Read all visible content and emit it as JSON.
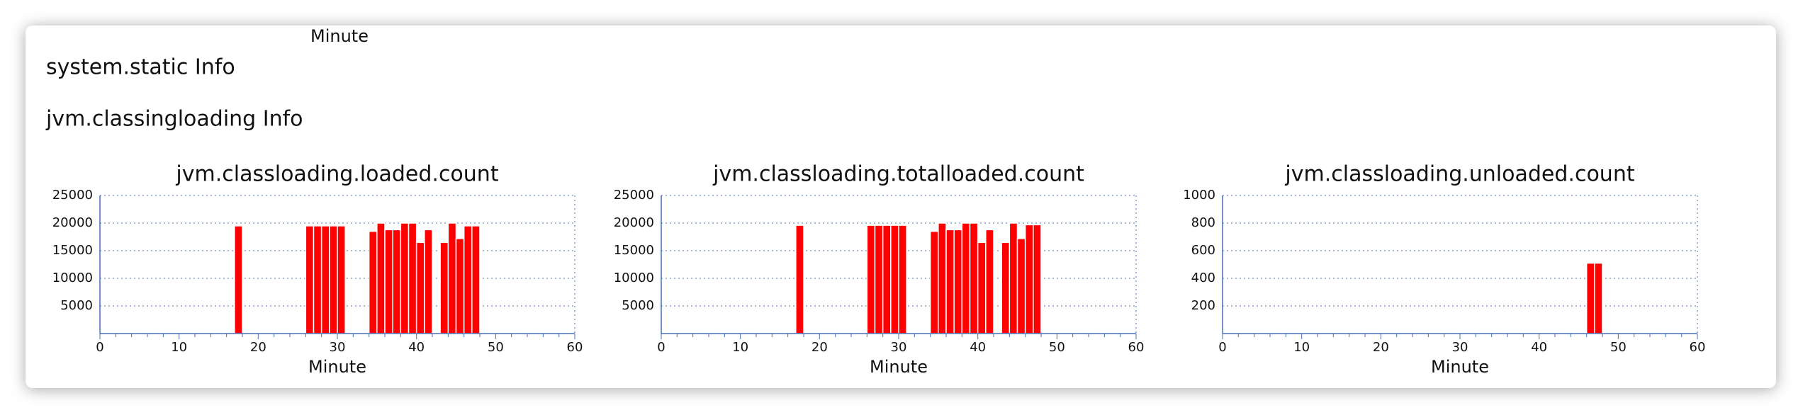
{
  "stray_label": "Minute",
  "sections": [
    "system.static Info",
    "jvm.classingloading Info"
  ],
  "chart_data": [
    {
      "type": "bar",
      "title": "jvm.classloading.loaded.count",
      "x_label": "Minute",
      "color": "#ff0000",
      "x": [
        17,
        26,
        27,
        28,
        29,
        30,
        34,
        35,
        36,
        37,
        38,
        39,
        40,
        41,
        43,
        44,
        45,
        46,
        47
      ],
      "values": [
        19500,
        19500,
        19500,
        19500,
        19500,
        19500,
        18500,
        20000,
        18800,
        18800,
        20000,
        20000,
        16500,
        18800,
        16500,
        20000,
        17200,
        19500,
        19500
      ],
      "xlim": [
        0,
        60
      ],
      "xticks": [
        0,
        10,
        20,
        30,
        40,
        50,
        60
      ],
      "ylim": [
        0,
        25000
      ],
      "yticks": [
        5000,
        10000,
        15000,
        20000,
        25000
      ],
      "grid": true
    },
    {
      "type": "bar",
      "title": "jvm.classloading.totalloaded.count",
      "x_label": "Minute",
      "color": "#ff0000",
      "x": [
        17,
        26,
        27,
        28,
        29,
        30,
        34,
        35,
        36,
        37,
        38,
        39,
        40,
        41,
        43,
        44,
        45,
        46,
        47
      ],
      "values": [
        19600,
        19600,
        19600,
        19600,
        19600,
        19600,
        18500,
        20000,
        18800,
        18800,
        20000,
        20000,
        16500,
        18800,
        16500,
        20000,
        17200,
        19700,
        19700
      ],
      "xlim": [
        0,
        60
      ],
      "xticks": [
        0,
        10,
        20,
        30,
        40,
        50,
        60
      ],
      "ylim": [
        0,
        25000
      ],
      "yticks": [
        5000,
        10000,
        15000,
        20000,
        25000
      ],
      "grid": true
    },
    {
      "type": "bar",
      "title": "jvm.classloading.unloaded.count",
      "x_label": "Minute",
      "color": "#ff0000",
      "x": [
        17,
        26,
        27,
        28,
        29,
        35,
        36,
        37,
        38,
        39,
        41,
        46,
        47
      ],
      "values": [
        3,
        3,
        3,
        3,
        3,
        3,
        3,
        3,
        3,
        3,
        3,
        510,
        510
      ],
      "xlim": [
        0,
        60
      ],
      "xticks": [
        0,
        10,
        20,
        30,
        40,
        50,
        60
      ],
      "ylim": [
        0,
        1000
      ],
      "yticks": [
        200,
        400,
        600,
        800,
        1000
      ],
      "grid": true
    }
  ]
}
